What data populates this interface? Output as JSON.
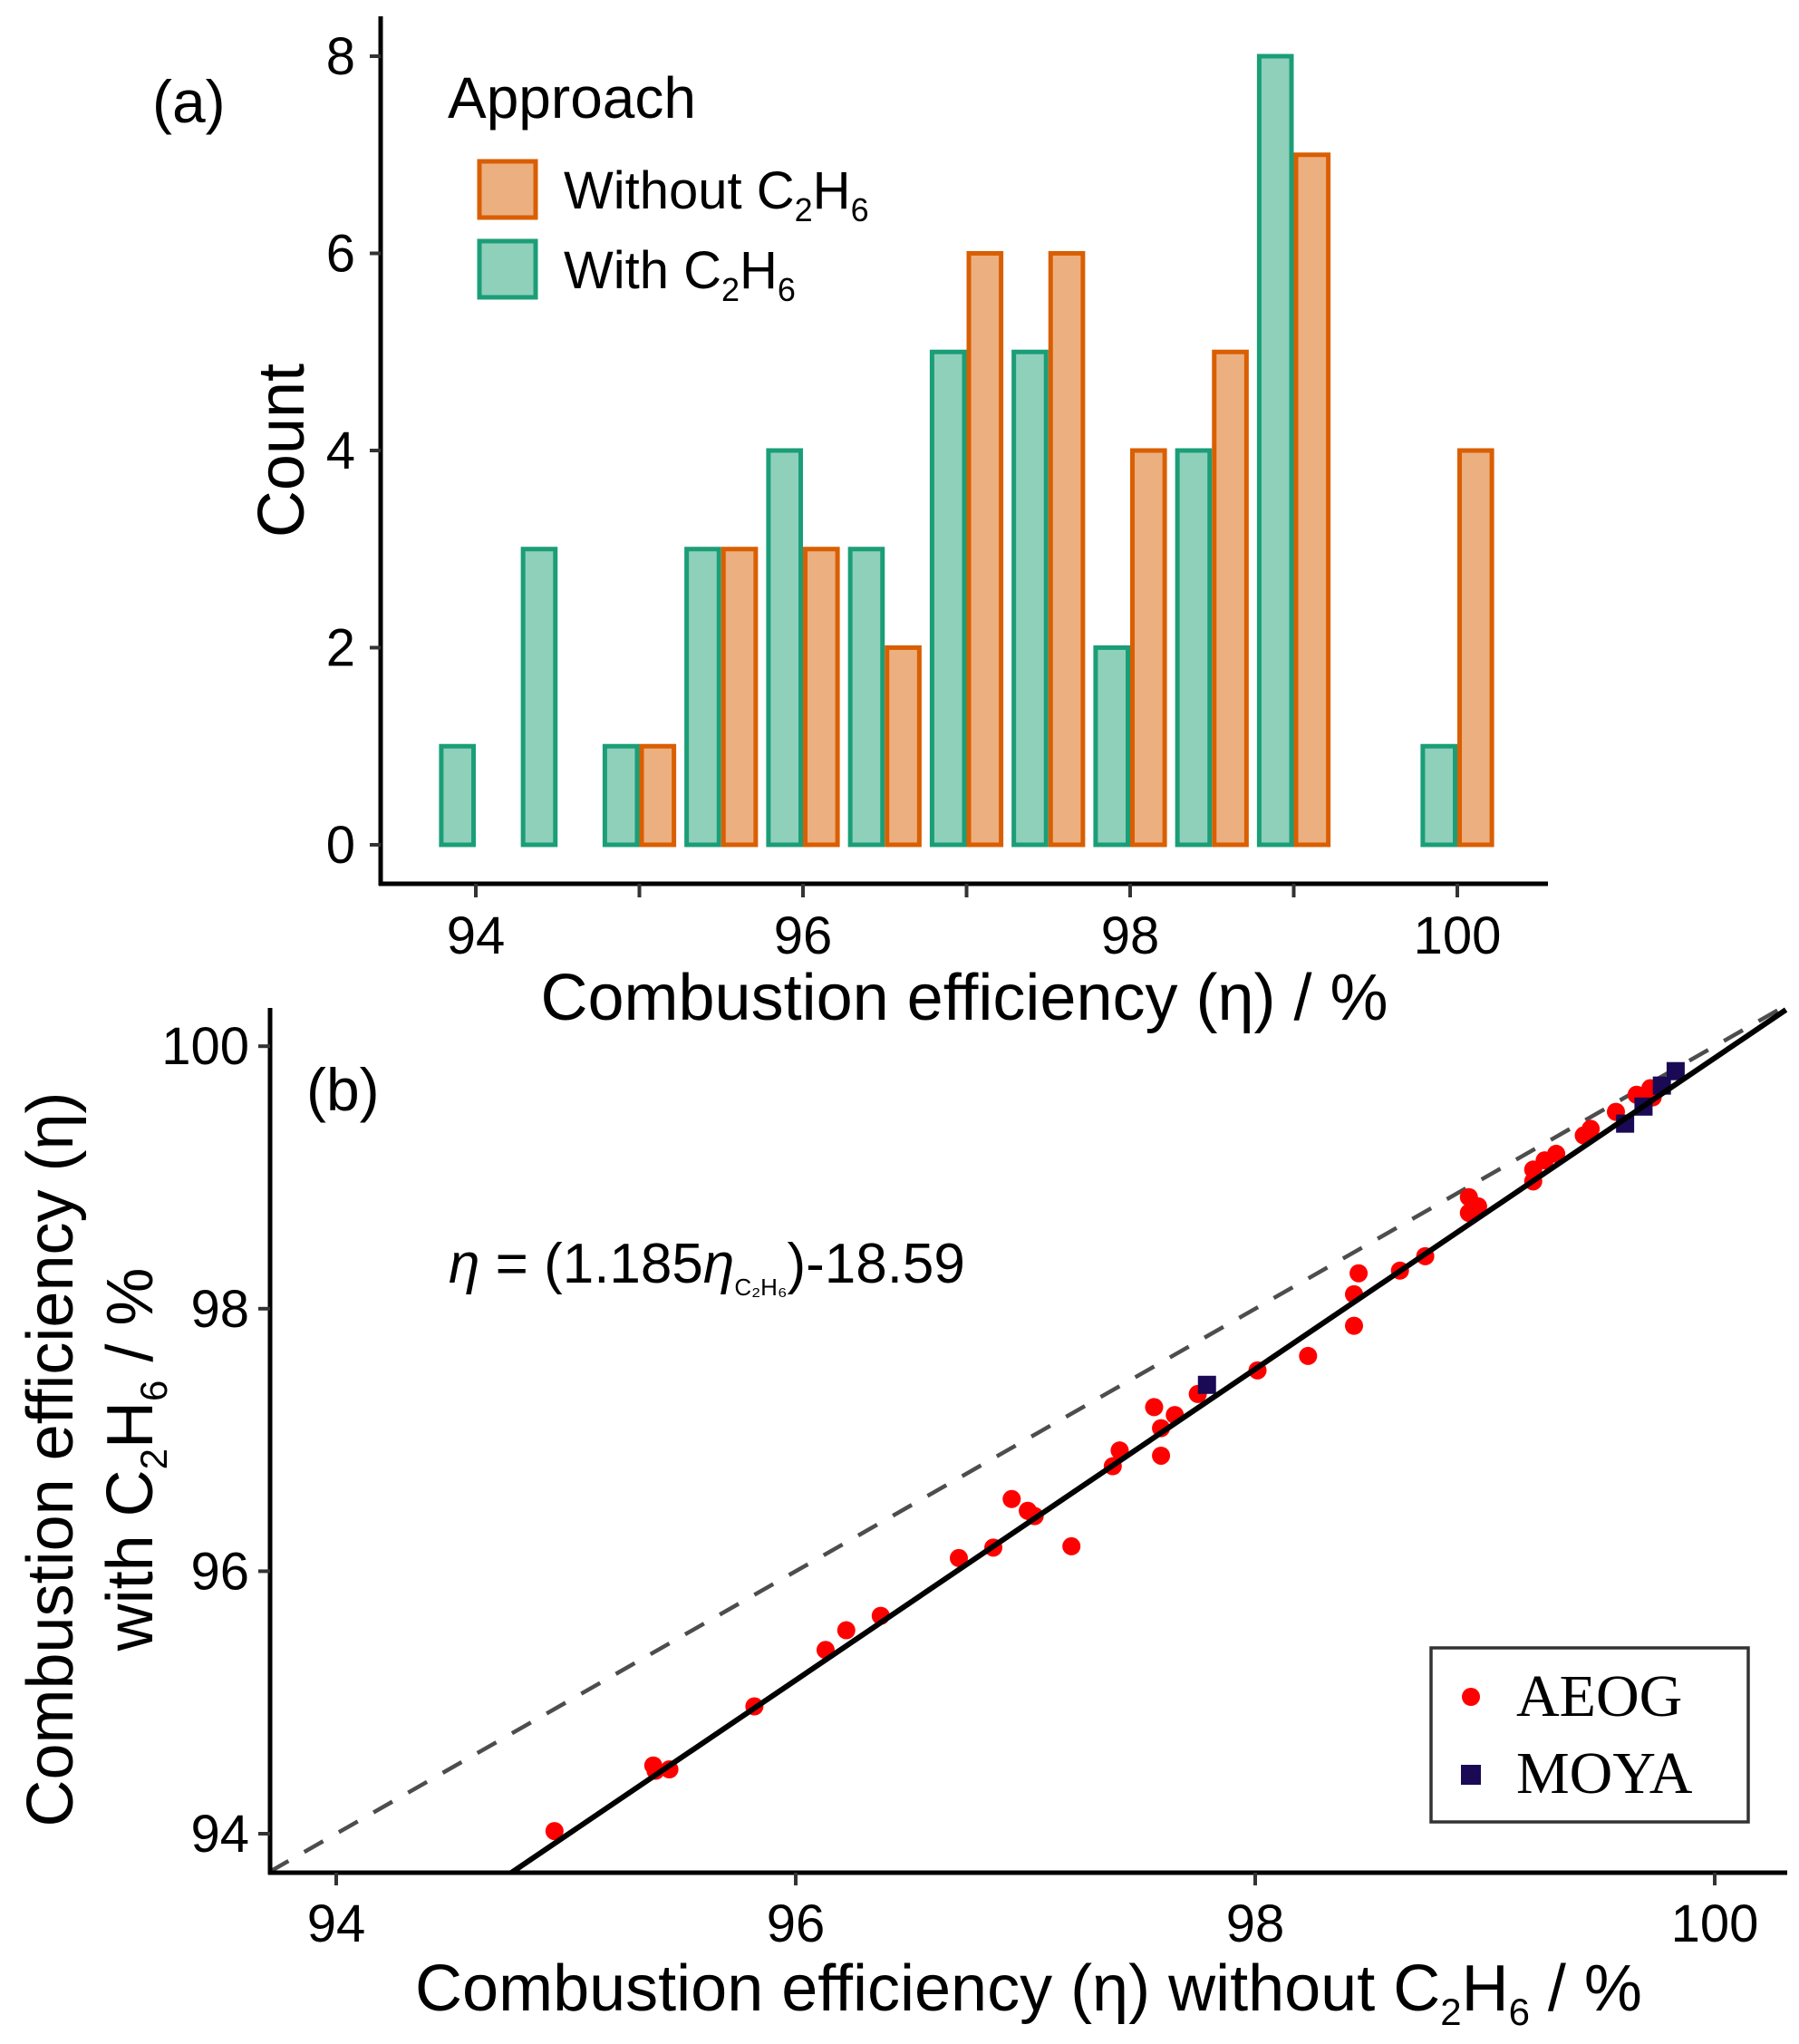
{
  "figure": {
    "panels": [
      "(a)",
      "(b)"
    ]
  },
  "chart_data": [
    {
      "type": "bar",
      "panel_label": "(a)",
      "title": "",
      "xlabel": "Combustion efficiency (η) / %",
      "ylabel": "Count",
      "xlim": [
        93.3,
        100.6
      ],
      "ylim": [
        0,
        8.3
      ],
      "x_ticks": [
        94,
        95,
        96,
        97,
        98,
        99,
        100
      ],
      "x_tick_labels": [
        "94",
        "",
        "96",
        "",
        "98",
        "",
        "100"
      ],
      "y_ticks": [
        0,
        2,
        4,
        6,
        8
      ],
      "y_tick_labels": [
        "0",
        "2",
        "4",
        "6",
        "8"
      ],
      "bin_width": 0.5,
      "categories": [
        94.0,
        94.5,
        95.0,
        95.5,
        96.0,
        96.5,
        97.0,
        97.5,
        98.0,
        98.5,
        99.0,
        99.5,
        100.0
      ],
      "legend": {
        "title": "Approach",
        "position": "top-left",
        "entries": [
          {
            "label": "Without C",
            "sub1": "2",
            "mid": "H",
            "sub2": "6"
          },
          {
            "label": "With C",
            "sub1": "2",
            "mid": "H",
            "sub2": "6"
          }
        ]
      },
      "series": [
        {
          "name": "With C2H6",
          "fill": "#8fd0bb",
          "stroke": "#1b9e77",
          "values": [
            1,
            3,
            1,
            3,
            4,
            3,
            5,
            5,
            2,
            4,
            8,
            0,
            1
          ]
        },
        {
          "name": "Without C2H6",
          "fill": "#ecaf80",
          "stroke": "#d95f02",
          "values": [
            0,
            0,
            1,
            3,
            3,
            2,
            6,
            6,
            4,
            5,
            7,
            0,
            4
          ]
        }
      ],
      "grid": false
    },
    {
      "type": "scatter",
      "panel_label": "(b)",
      "title": "",
      "xlabel": {
        "pre": "Combustion efficiency (η) without C",
        "sub1": "2",
        "mid": "H",
        "sub2": "6",
        "post": " / %"
      },
      "ylabel": {
        "line1": "Combustion efficiency (η)",
        "line2_pre": "with C",
        "sub1": "2",
        "mid": "H",
        "sub2": "6",
        "line2_post": " / %"
      },
      "xlim": [
        93.71,
        100.31
      ],
      "ylim": [
        93.7,
        100.26
      ],
      "x_ticks": [
        94,
        96,
        98,
        100
      ],
      "x_tick_labels": [
        "94",
        "96",
        "98",
        "100"
      ],
      "y_ticks": [
        94,
        96,
        98,
        100
      ],
      "y_tick_labels": [
        "94",
        "96",
        "98",
        "100"
      ],
      "annotation": {
        "eta": "η",
        "eq": " = (1.185",
        "eta2": "η",
        "sub": "C₂H₆",
        "rest": ")-18.59"
      },
      "fit_line": {
        "slope": 1.185,
        "intercept": -18.59,
        "color": "#000000",
        "style": "solid"
      },
      "identity_line": {
        "slope": 1,
        "intercept": 0,
        "color": "#4d4d4d",
        "style": "dashed"
      },
      "legend": {
        "position": "bottom-right",
        "entries": [
          {
            "label": "AEOG",
            "marker": "circle",
            "color": "#ff0000"
          },
          {
            "label": "MOYA",
            "marker": "square",
            "color": "#1a0a55"
          }
        ]
      },
      "series": [
        {
          "name": "AEOG",
          "marker": "circle",
          "color": "#ff0000",
          "points": [
            [
              94.95,
              94.02
            ],
            [
              95.38,
              94.52
            ],
            [
              95.39,
              94.48
            ],
            [
              95.45,
              94.49
            ],
            [
              95.82,
              94.97
            ],
            [
              96.13,
              95.4
            ],
            [
              96.22,
              95.55
            ],
            [
              96.37,
              95.66
            ],
            [
              96.71,
              96.1
            ],
            [
              96.86,
              96.18
            ],
            [
              96.94,
              96.55
            ],
            [
              97.01,
              96.46
            ],
            [
              97.04,
              96.42
            ],
            [
              97.2,
              96.19
            ],
            [
              97.38,
              96.8
            ],
            [
              97.41,
              96.92
            ],
            [
              97.56,
              97.25
            ],
            [
              97.59,
              96.88
            ],
            [
              97.59,
              97.09
            ],
            [
              97.65,
              97.19
            ],
            [
              97.75,
              97.35
            ],
            [
              98.01,
              97.53
            ],
            [
              98.23,
              97.64
            ],
            [
              98.43,
              97.87
            ],
            [
              98.43,
              98.11
            ],
            [
              98.45,
              98.27
            ],
            [
              98.63,
              98.29
            ],
            [
              98.74,
              98.4
            ],
            [
              98.93,
              98.73
            ],
            [
              98.93,
              98.85
            ],
            [
              98.97,
              98.78
            ],
            [
              99.21,
              98.97
            ],
            [
              99.21,
              99.06
            ],
            [
              99.26,
              99.13
            ],
            [
              99.31,
              99.18
            ],
            [
              99.43,
              99.32
            ],
            [
              99.46,
              99.37
            ],
            [
              99.57,
              99.5
            ],
            [
              99.66,
              99.63
            ],
            [
              99.72,
              99.68
            ],
            [
              99.73,
              99.61
            ]
          ]
        },
        {
          "name": "MOYA",
          "marker": "square",
          "color": "#1a0a55",
          "points": [
            [
              97.79,
              97.42
            ],
            [
              99.61,
              99.41
            ],
            [
              99.69,
              99.54
            ],
            [
              99.77,
              99.7
            ],
            [
              99.83,
              99.81
            ]
          ]
        }
      ],
      "grid": false
    }
  ]
}
